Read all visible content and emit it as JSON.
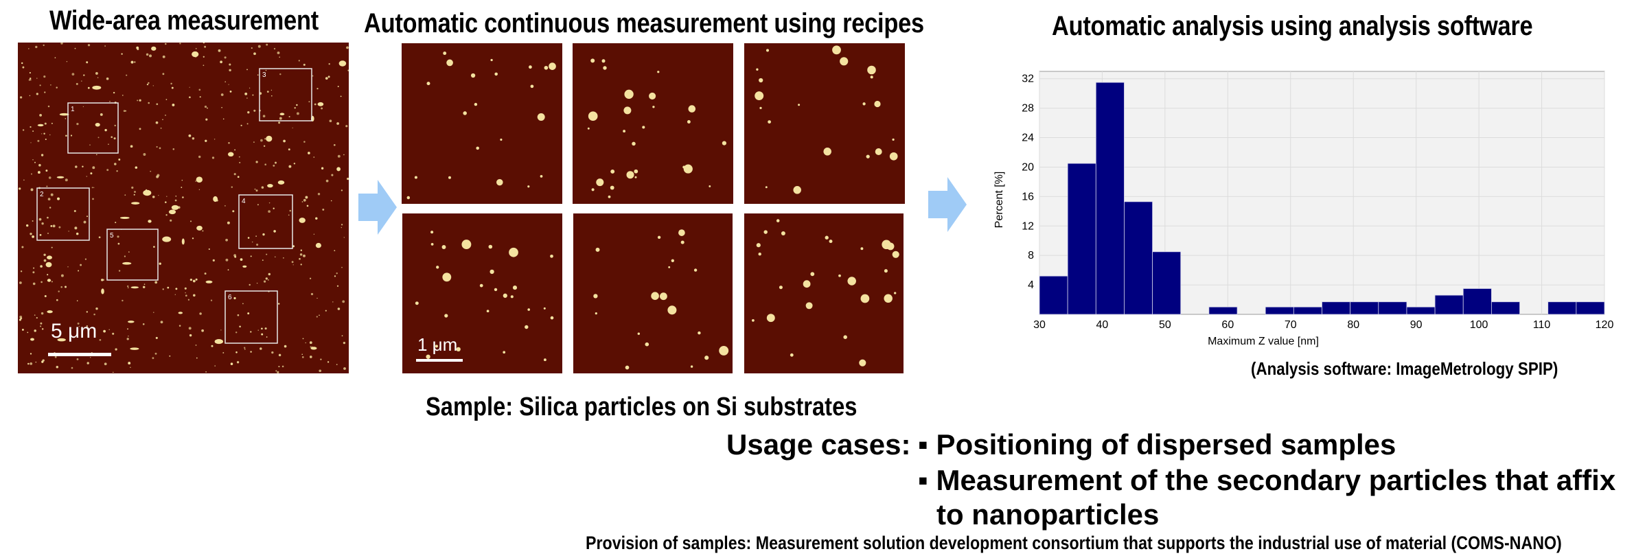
{
  "headings": {
    "wide_area": "Wide-area measurement",
    "continuous": "Automatic continuous measurement using recipes",
    "analysis": "Automatic analysis using analysis software"
  },
  "wide_image": {
    "scale_label": "5 μm",
    "regions": [
      "1",
      "2",
      "3",
      "4",
      "5",
      "6"
    ]
  },
  "grid_images": {
    "scale_label": "1 μm",
    "count": 6
  },
  "colors": {
    "afm_background": "#5a0e02",
    "particle": "#f4e2a0",
    "arrow": "#9fcbf6",
    "bar": "#00007f"
  },
  "chart_data": {
    "type": "bar",
    "title": "",
    "xlabel": "Maximum Z value [nm]",
    "ylabel": "Percent [%]",
    "xlim": [
      30,
      120
    ],
    "ylim": [
      0,
      33
    ],
    "xticks": [
      30,
      40,
      50,
      60,
      70,
      80,
      90,
      100,
      110,
      120
    ],
    "yticks": [
      4,
      8,
      12,
      16,
      20,
      24,
      28,
      32
    ],
    "bin_width": 4.5,
    "bins_start": [
      30,
      34.5,
      39,
      43.5,
      48,
      52.5,
      57,
      61.5,
      66,
      70.5,
      75,
      79.5,
      84,
      88.5,
      93,
      97.5,
      102,
      106.5,
      111,
      115.5
    ],
    "values": [
      5.2,
      20.5,
      31.5,
      15.3,
      8.5,
      0,
      1,
      0,
      1,
      1,
      1.7,
      1.7,
      1.7,
      1,
      2.6,
      3.5,
      1.7,
      0,
      1.7,
      1.7
    ],
    "grid": true,
    "legend": "none"
  },
  "captions": {
    "software": "(Analysis software: ImageMetrology SPIP)",
    "sample": "Sample: Silica particles on Si substrates",
    "usage_label": "Usage cases:",
    "usage_items": [
      "▪ Positioning of dispersed samples",
      "▪ Measurement of the secondary particles that affix",
      "to nanoparticles"
    ],
    "provision": "Provision of samples: Measurement solution development consortium that supports the industrial use of material (COMS-NANO)"
  }
}
